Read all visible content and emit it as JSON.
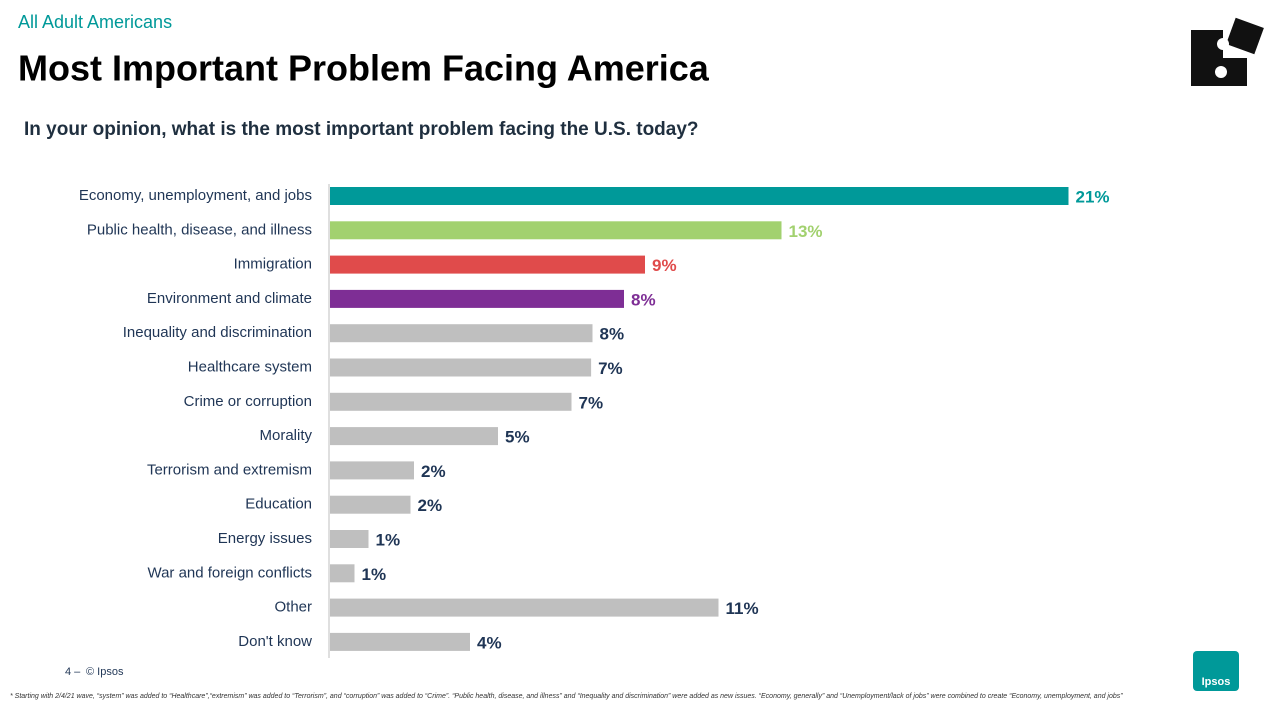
{
  "header": {
    "kicker": "All Adult Americans",
    "title": "Most Important Problem Facing America"
  },
  "chart_data": {
    "type": "hbar",
    "title": "In your opinion, what is the most important problem facing the U.S. today?",
    "categories": [
      "Economy, unemployment, and jobs",
      "Public health, disease, and illness",
      "Immigration",
      "Environment and climate",
      "Inequality and discrimination",
      "Healthcare system",
      "Crime or corruption",
      "Morality",
      "Terrorism and extremism",
      "Education",
      "Energy issues",
      "War and foreign conflicts",
      "Other",
      "Don't know"
    ],
    "values": [
      21.1,
      12.9,
      9.0,
      8.4,
      7.5,
      7.46,
      6.9,
      4.8,
      2.4,
      2.3,
      1.1,
      0.7,
      11.1,
      4.0
    ],
    "value_labels": [
      "21%",
      "13%",
      "9%",
      "8%",
      "8%",
      "7%",
      "7%",
      "5%",
      "2%",
      "2%",
      "1%",
      "1%",
      "11%",
      "4%"
    ],
    "colors": [
      "#009999",
      "#a2d16f",
      "#e04b4b",
      "#7e2e95",
      "#bfbfbf",
      "#bfbfbf",
      "#bfbfbf",
      "#bfbfbf",
      "#bfbfbf",
      "#bfbfbf",
      "#bfbfbf",
      "#bfbfbf",
      "#bfbfbf",
      "#bfbfbf"
    ]
  },
  "footer": {
    "page": "4 –",
    "copyright": "© Ipsos",
    "logo": "Ipsos",
    "note": "* Starting with 2/4/21 wave, “system” was added to “Healthcare”,“extremism” was added to “Terrorism”, and “corruption” was added to “Crime”. “Public health, disease, and illness” and “Inequality and discrimination” were added as new issues. “Economy, generally” and “Unemployment/lack of jobs” were combined to create “Economy, unemployment, and jobs”"
  }
}
